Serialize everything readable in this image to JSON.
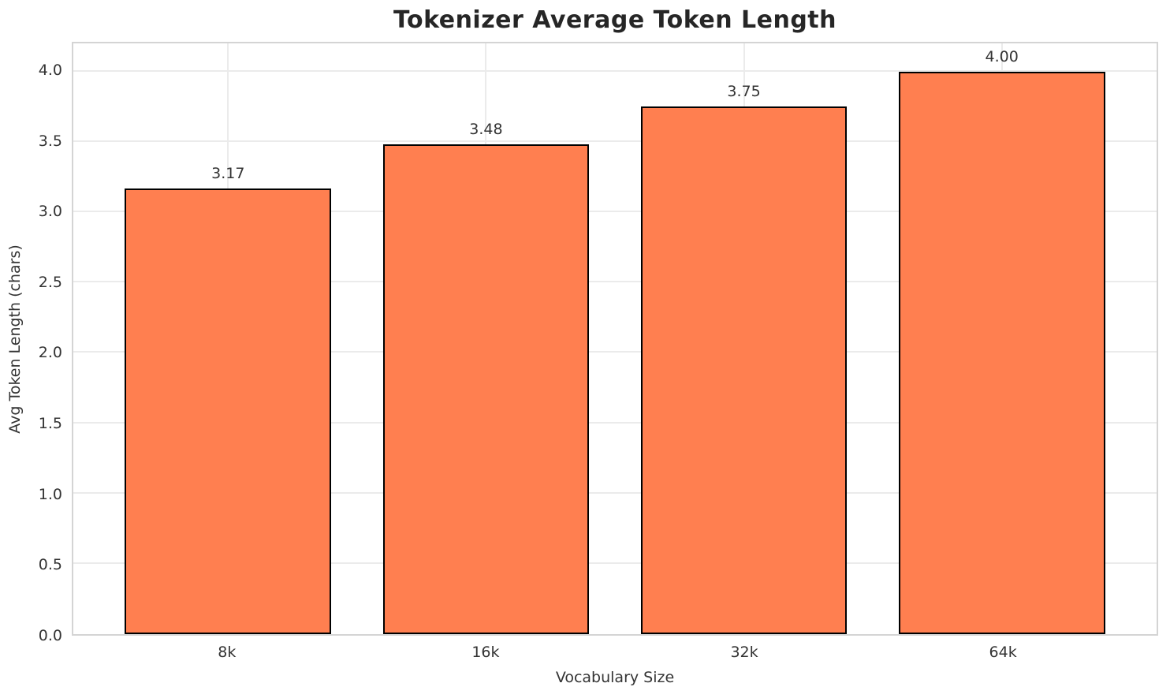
{
  "chart_data": {
    "type": "bar",
    "title": "Tokenizer Average Token Length",
    "xlabel": "Vocabulary Size",
    "ylabel": "Avg Token Length (chars)",
    "categories": [
      "8k",
      "16k",
      "32k",
      "64k"
    ],
    "values": [
      3.17,
      3.48,
      3.75,
      4.0
    ],
    "value_labels": [
      "3.17",
      "3.48",
      "3.75",
      "4.00"
    ],
    "yticks": [
      0.0,
      0.5,
      1.0,
      1.5,
      2.0,
      2.5,
      3.0,
      3.5,
      4.0
    ],
    "ytick_labels": [
      "0.0",
      "0.5",
      "1.0",
      "1.5",
      "2.0",
      "2.5",
      "3.0",
      "3.5",
      "4.0"
    ],
    "ylim": [
      0,
      4.2
    ],
    "xlim": [
      -0.6,
      3.6
    ],
    "bar_width_units": 0.8,
    "grid": true,
    "legend_position": "none",
    "bar_color": "#FF7F50",
    "bar_edge_color": "#000000",
    "grid_color": "#ebebeb",
    "spine_color": "#d4d4d4",
    "text_color": "#333333",
    "title_color": "#262626"
  }
}
